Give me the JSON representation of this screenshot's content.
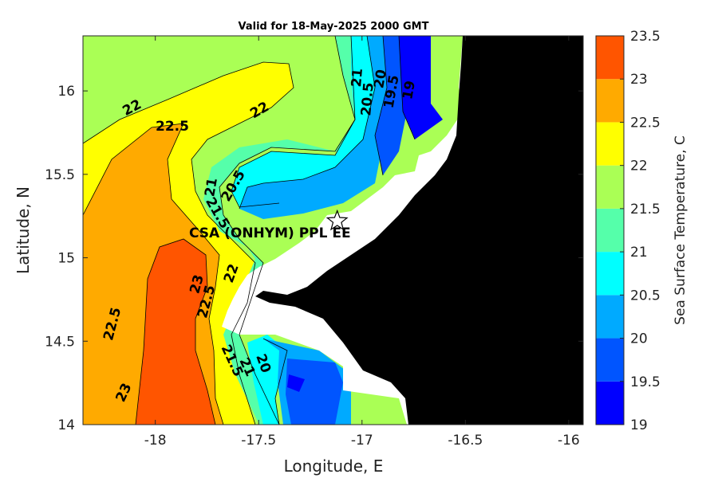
{
  "chart_data": {
    "type": "heatmap",
    "title": "Valid for 18-May-2025 2000 GMT",
    "xlabel": "Longitude, E",
    "ylabel": "Latitude, N",
    "xlim": [
      -18.35,
      -15.93
    ],
    "ylim": [
      14.0,
      16.33
    ],
    "xticks": [
      "-18",
      "-17.5",
      "-17",
      "-16.5",
      "-16"
    ],
    "xtick_values": [
      -18,
      -17.5,
      -17,
      -16.5,
      -16
    ],
    "yticks": [
      "14",
      "14.5",
      "15",
      "15.5",
      "16"
    ],
    "ytick_values": [
      14,
      14.5,
      15,
      15.5,
      16
    ],
    "colorbar": {
      "label": "Sea Surface Temperature, C",
      "ticks": [
        "19",
        "19.5",
        "20",
        "20.5",
        "21",
        "21.5",
        "22",
        "22.5",
        "23",
        "23.5"
      ],
      "tick_values": [
        19,
        19.5,
        20,
        20.5,
        21,
        21.5,
        22,
        22.5,
        23,
        23.5
      ],
      "bands": [
        {
          "min": 19.0,
          "max": 19.5,
          "color": "#0000ff"
        },
        {
          "min": 19.5,
          "max": 20.0,
          "color": "#0055ff"
        },
        {
          "min": 20.0,
          "max": 20.5,
          "color": "#00aaff"
        },
        {
          "min": 20.5,
          "max": 21.0,
          "color": "#00ffff"
        },
        {
          "min": 21.0,
          "max": 21.5,
          "color": "#55ffaa"
        },
        {
          "min": 21.5,
          "max": 22.0,
          "color": "#aaff55"
        },
        {
          "min": 22.0,
          "max": 22.5,
          "color": "#ffff00"
        },
        {
          "min": 22.5,
          "max": 23.0,
          "color": "#ffaa00"
        },
        {
          "min": 23.0,
          "max": 23.5,
          "color": "#ff5500"
        }
      ]
    },
    "contour_labels": [
      "22",
      "22.5",
      "22",
      "21",
      "20.5",
      "20",
      "19.5",
      "19",
      "21",
      "20.5",
      "21.5",
      "22",
      "23",
      "22.5",
      "22.5",
      "23",
      "21.5",
      "21",
      "20"
    ],
    "station": {
      "name": "CSA (ONHYM) PPL EE",
      "lon": -17.12,
      "lat": 15.22
    },
    "land_color": "#000000",
    "nodata_color": "#ffffff"
  }
}
